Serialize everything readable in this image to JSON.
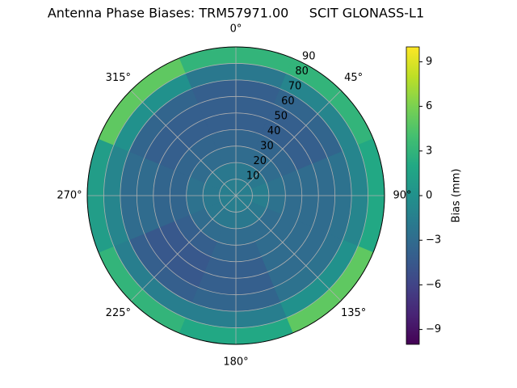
{
  "chart_data": {
    "type": "polar-contour",
    "title": "Antenna Phase Biases: TRM57971.00     SCIT GLONASS-L1",
    "colormap": "viridis",
    "grid": true,
    "rlim": [
      0,
      90
    ],
    "rticks": [
      10,
      20,
      30,
      40,
      50,
      60,
      70,
      80,
      90
    ],
    "theta_ticks": [
      {
        "value": 0,
        "label": "0°"
      },
      {
        "value": 45,
        "label": "45°"
      },
      {
        "value": 90,
        "label": "90°"
      },
      {
        "value": 135,
        "label": "135°"
      },
      {
        "value": 180,
        "label": "180°"
      },
      {
        "value": 225,
        "label": "225°"
      },
      {
        "value": 270,
        "label": "270°"
      },
      {
        "value": 315,
        "label": "315°"
      }
    ],
    "azimuth": [
      0,
      45,
      90,
      135,
      180,
      225,
      270,
      315
    ],
    "zenith": [
      5,
      15,
      25,
      35,
      45,
      55,
      65,
      75,
      85
    ],
    "values": [
      [
        -1.5,
        -1.5,
        -1.5,
        -1.5,
        -1.5,
        -1.5,
        -1.5,
        -1.5
      ],
      [
        -2,
        -2,
        -1.5,
        -2,
        -2,
        -2,
        -2,
        -2
      ],
      [
        -3,
        -3,
        -2.5,
        -3,
        -3,
        -3,
        -2.5,
        -3
      ],
      [
        -3.5,
        -3.5,
        -3,
        -3,
        -3.5,
        -4,
        -3.5,
        -3.5
      ],
      [
        -4,
        -4,
        -3,
        -3,
        -4,
        -4.5,
        -3.5,
        -4
      ],
      [
        -4,
        -4,
        -3,
        -3,
        -4,
        -4.5,
        -3,
        -4
      ],
      [
        -4,
        -3.5,
        -2.5,
        -2.5,
        -3.5,
        -4,
        -3,
        -3.5
      ],
      [
        -2,
        -1,
        -1,
        0,
        -1.5,
        -1.5,
        -1,
        0
      ],
      [
        3,
        3,
        2,
        5,
        2,
        3,
        1,
        5
      ]
    ],
    "colorbar": {
      "label": "Bias (mm)",
      "clim": [
        -10,
        10
      ],
      "ticks": [
        {
          "value": -9,
          "label": "−9"
        },
        {
          "value": -6,
          "label": "−6"
        },
        {
          "value": -3,
          "label": "−3"
        },
        0,
        3,
        6,
        9
      ]
    }
  }
}
